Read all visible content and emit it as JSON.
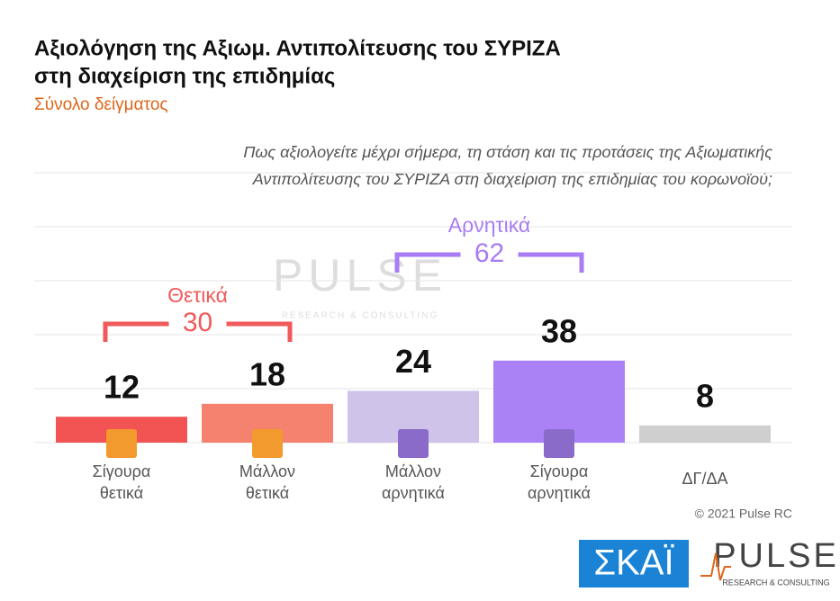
{
  "chart_data": {
    "type": "bar",
    "title": [
      "Αξιολόγηση της Αξιωμ. Αντιπολίτευσης του ΣΥΡΙΖΑ",
      "στη διαχείριση της επιδημίας"
    ],
    "subtitle": "Σύνολο δείγματος",
    "question": [
      "Πως αξιολογείτε  μέχρι σήμερα, τη στάση και τις προτάσεις της Αξιωματικής",
      "Αντιπολίτευσης του ΣΥΡΙΖΑ στη διαχείριση της επιδημίας του κορωνοϊού;"
    ],
    "categories": [
      [
        "Σίγουρα",
        "θετικά"
      ],
      [
        "Μάλλον",
        "θετικά"
      ],
      [
        "Μάλλον",
        "αρνητικά"
      ],
      [
        "Σίγουρα",
        "αρνητικά"
      ],
      [
        "ΔΓ/ΔΑ"
      ]
    ],
    "values": [
      12,
      18,
      24,
      38,
      8
    ],
    "colors": [
      "#f25454",
      "#f5826f",
      "#cfc3ea",
      "#ab82f5",
      "#cfcfcf"
    ],
    "groups": [
      {
        "name": "Θετικά",
        "value": 30,
        "color": "#f05a5a"
      },
      {
        "name": "Αρνητικά",
        "value": 62,
        "color": "#a77cf4"
      }
    ],
    "ylim": [
      0,
      125
    ],
    "yticks": [
      0,
      25,
      50,
      75,
      100,
      125
    ],
    "grid": true,
    "watermark": {
      "name": "PULSE",
      "tagline": "RESEARCH & CONSULTING"
    },
    "copyright": "© 2021 Pulse RC",
    "logos": {
      "channel": "ΣΚΑΪ",
      "brand": "PULSE",
      "tagline": "RESEARCH & CONSULTING"
    }
  }
}
